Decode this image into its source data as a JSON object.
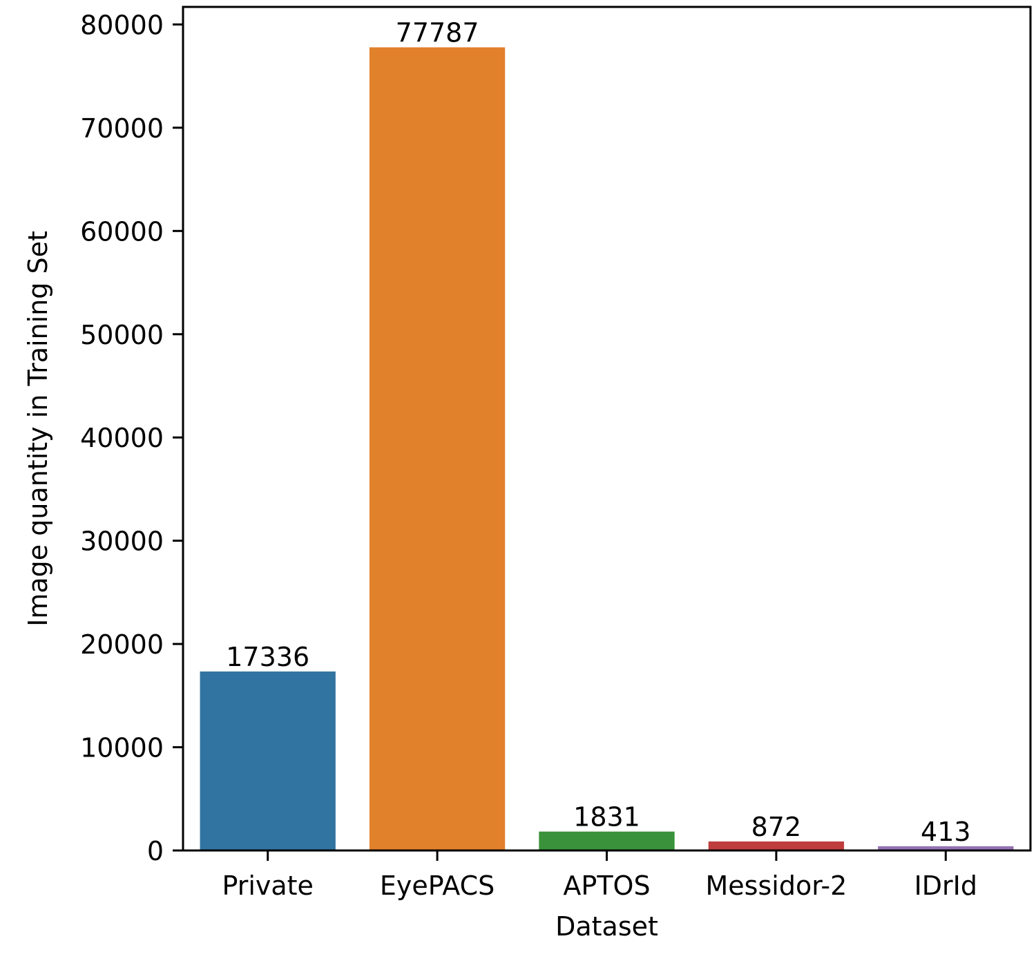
{
  "chart_data": {
    "type": "bar",
    "title": "",
    "xlabel": "Dataset",
    "ylabel": "Image quantity in Training Set",
    "categories": [
      "Private",
      "EyePACS",
      "APTOS",
      "Messidor-2",
      "IDrId"
    ],
    "values": [
      17336,
      77787,
      1831,
      872,
      413
    ],
    "data_labels": [
      "17336",
      "77787",
      "1831",
      "872",
      "413"
    ],
    "colors": [
      "#3274a1",
      "#e1812c",
      "#3a923a",
      "#c03d3e",
      "#9372b2"
    ],
    "ylim": [
      0,
      81700
    ],
    "yticks": [
      0,
      10000,
      20000,
      30000,
      40000,
      50000,
      60000,
      70000,
      80000
    ],
    "ytick_labels": [
      "0",
      "10000",
      "20000",
      "30000",
      "40000",
      "50000",
      "60000",
      "70000",
      "80000"
    ],
    "grid": false,
    "legend": "none"
  }
}
